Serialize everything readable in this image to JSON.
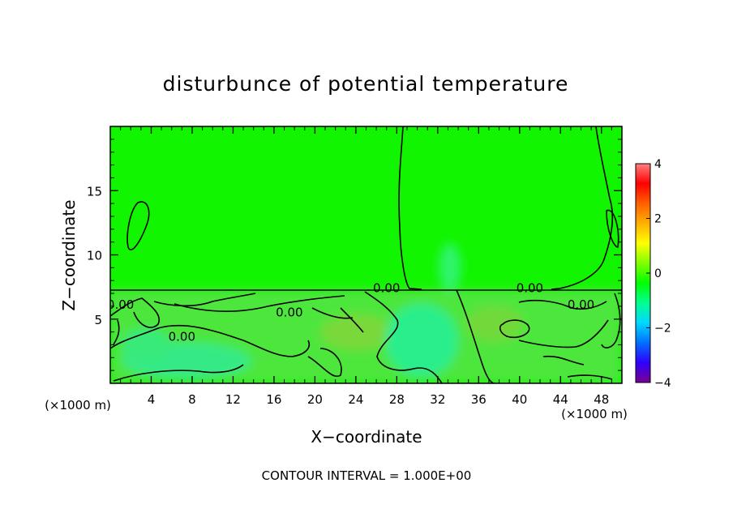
{
  "chart_data": {
    "type": "heatmap",
    "title": "disturbunce of potential temperature",
    "xlabel": "X−coordinate",
    "ylabel": "Z−coordinate",
    "x_unit": "(×1000 m)",
    "x_unit_right": "(×1000 m)",
    "x_ticks": [
      4,
      8,
      12,
      16,
      20,
      24,
      28,
      32,
      36,
      40,
      44,
      48
    ],
    "y_ticks": [
      5,
      10,
      15
    ],
    "xlim": [
      0,
      50
    ],
    "ylim": [
      0,
      20
    ],
    "colorbar": {
      "ticks": [
        4,
        2,
        0,
        -2,
        -4
      ],
      "range": [
        -4,
        4
      ],
      "colors": [
        "#7a0090",
        "#3000ff",
        "#0070ff",
        "#00d8ff",
        "#00ff90",
        "#00ff00",
        "#80ff00",
        "#ffff00",
        "#ffb000",
        "#ff6000",
        "#ff0000",
        "#ff8080"
      ]
    },
    "contour_labels": [
      {
        "text": "0.00",
        "x": 1.0,
        "y": 5.8
      },
      {
        "text": "0.00",
        "x": 7.0,
        "y": 3.3
      },
      {
        "text": "0.00",
        "x": 17.5,
        "y": 5.2
      },
      {
        "text": "0.00",
        "x": 27.0,
        "y": 7.1
      },
      {
        "text": "0.00",
        "x": 41.0,
        "y": 7.1
      },
      {
        "text": "0.00",
        "x": 46.0,
        "y": 5.8
      }
    ],
    "footer": "CONTOUR INTERVAL = 1.000E+00",
    "grid": false,
    "legend": "right"
  }
}
